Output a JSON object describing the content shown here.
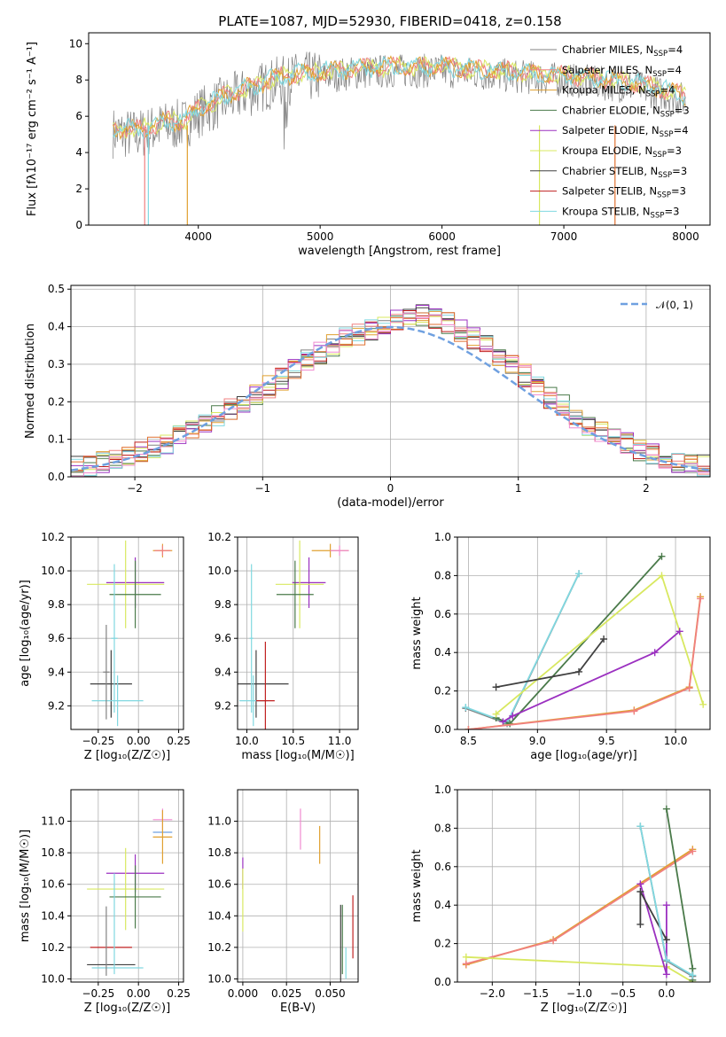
{
  "title": "PLATE=1087, MJD=52930, FIBERID=0418, z=0.158",
  "colors": {
    "Chabrier MILES": "#808080",
    "Salpeter MILES": "#f08080",
    "Kroupa MILES": "#e0a030",
    "Chabrier ELODIE": "#4a7a4a",
    "Salpeter ELODIE": "#9b30c0",
    "Kroupa ELODIE": "#d8e860",
    "Chabrier STELIB": "#404040",
    "Salpeter STELIB": "#c02020",
    "Kroupa STELIB": "#80d8e0",
    "blue": "#6fa0e0",
    "orange": "#e07030",
    "pink": "#f08ad0"
  },
  "chart_data": [
    {
      "type": "line",
      "title": "PLATE=1087, MJD=52930, FIBERID=0418, z=0.158",
      "xlabel": "wavelength [Angstrom, rest frame]",
      "ylabel": "Flux [fλ10⁻¹⁷ erg cm⁻² s⁻¹ A⁻¹]",
      "xlim": [
        3100,
        8200
      ],
      "ylim": [
        0,
        10.6
      ],
      "xticks": [
        "4000",
        "5000",
        "6000",
        "7000",
        "8000"
      ],
      "yticks": [
        "0",
        "2",
        "4",
        "6",
        "8",
        "10"
      ],
      "legend_position": "top-right",
      "legend": [
        {
          "model": "Chabrier MILES",
          "nssp": "4"
        },
        {
          "model": "Salpeter MILES",
          "nssp": "4"
        },
        {
          "model": "Kroupa MILES",
          "nssp": "4"
        },
        {
          "model": "Chabrier ELODIE",
          "nssp": "3"
        },
        {
          "model": "Salpeter ELODIE",
          "nssp": "4"
        },
        {
          "model": "Kroupa ELODIE",
          "nssp": "3"
        },
        {
          "model": "Chabrier STELIB",
          "nssp": "3"
        },
        {
          "model": "Salpeter STELIB",
          "nssp": "3"
        },
        {
          "model": "Kroupa STELIB",
          "nssp": "3"
        }
      ],
      "continuum": {
        "x": [
          3300,
          3500,
          3700,
          3900,
          4000,
          4200,
          4400,
          4600,
          4800,
          5000,
          5300,
          5600,
          6000,
          6400,
          6800,
          7200,
          7600,
          8000,
          8200
        ],
        "y": [
          5.1,
          5.0,
          5.4,
          5.6,
          6.2,
          6.8,
          7.3,
          7.8,
          8.1,
          8.2,
          8.4,
          8.5,
          8.5,
          8.3,
          8.1,
          7.9,
          7.6,
          6.9,
          6.4
        ]
      }
    },
    {
      "type": "bar",
      "xlabel": "(data-model)/error",
      "ylabel": "Normed distribution",
      "xlim": [
        -2.5,
        2.5
      ],
      "ylim": [
        0,
        0.51
      ],
      "xticks": [
        "−2",
        "−1",
        "0",
        "1",
        "2"
      ],
      "yticks": [
        "0.0",
        "0.1",
        "0.2",
        "0.3",
        "0.4",
        "0.5"
      ],
      "legend": "𝒩(0, 1)",
      "legend_position": "top-right",
      "bin_width": 0.1,
      "bin_start": -2.5,
      "values": [
        0.03,
        0.03,
        0.04,
        0.05,
        0.06,
        0.07,
        0.08,
        0.09,
        0.11,
        0.12,
        0.14,
        0.16,
        0.18,
        0.2,
        0.22,
        0.24,
        0.26,
        0.29,
        0.31,
        0.33,
        0.35,
        0.37,
        0.38,
        0.39,
        0.4,
        0.42,
        0.43,
        0.43,
        0.42,
        0.41,
        0.39,
        0.37,
        0.35,
        0.32,
        0.3,
        0.27,
        0.24,
        0.21,
        0.19,
        0.16,
        0.14,
        0.12,
        0.1,
        0.09,
        0.07,
        0.06,
        0.05,
        0.04,
        0.03,
        0.03
      ]
    },
    {
      "type": "scatter",
      "xlabel": "Z [log₁₀(Z/Z☉)]",
      "ylabel": "age  [log₁₀(age/yr)]",
      "xlim": [
        -0.42,
        0.28
      ],
      "ylim": [
        9.06,
        10.2
      ],
      "xticks": [
        "−0.25",
        "0.00",
        "0.25"
      ],
      "yticks": [
        "9.2",
        "9.4",
        "9.6",
        "9.8",
        "10.0",
        "10.2"
      ],
      "errorbars": [
        {
          "series": "Kroupa MILES",
          "x": 0.15,
          "y": 10.12,
          "xerr": 0.06,
          "yerr": 0.04
        },
        {
          "series": "Salpeter MILES",
          "x": 0.15,
          "y": 10.12,
          "xerr": 0.05,
          "yerr": 0.03
        },
        {
          "series": "Salpeter ELODIE",
          "x": -0.02,
          "y": 9.93,
          "xerr": 0.18,
          "yerr": 0.15
        },
        {
          "series": "Kroupa ELODIE",
          "x": -0.08,
          "y": 9.92,
          "xerr": 0.24,
          "yerr": 0.26
        },
        {
          "series": "Chabrier ELODIE",
          "x": -0.02,
          "y": 9.86,
          "xerr": 0.16,
          "yerr": 0.2
        },
        {
          "series": "Chabrier STELIB",
          "x": -0.17,
          "y": 9.33,
          "xerr": 0.13,
          "yerr": 0.2
        },
        {
          "series": "Kroupa STELIB",
          "x": -0.13,
          "y": 9.23,
          "xerr": 0.16,
          "yerr": 0.15
        },
        {
          "series": "Chabrier MILES",
          "x": -0.2,
          "y": 9.4,
          "xerr": 0.02,
          "yerr": 0.28
        },
        {
          "series": "Kroupa STELIB",
          "x": -0.15,
          "y": 9.6,
          "xerr": 0.02,
          "yerr": 0.44
        }
      ]
    },
    {
      "type": "scatter",
      "xlabel": "mass [log₁₀(M/M☉)]",
      "ylabel": "",
      "xlim": [
        9.9,
        11.2
      ],
      "ylim": [
        9.06,
        10.2
      ],
      "xticks": [
        "10.0",
        "10.5",
        "11.0"
      ],
      "yticks": [
        "9.2",
        "9.4",
        "9.6",
        "9.8",
        "10.0",
        "10.2"
      ],
      "errorbars": [
        {
          "series": "Kroupa MILES",
          "x": 10.9,
          "y": 10.12,
          "xerr": 0.2,
          "yerr": 0.04
        },
        {
          "series": "pink",
          "x": 11.0,
          "y": 10.12,
          "xerr": 0.1,
          "yerr": 0.03
        },
        {
          "series": "Salpeter ELODIE",
          "x": 10.67,
          "y": 9.93,
          "xerr": 0.18,
          "yerr": 0.15
        },
        {
          "series": "Kroupa ELODIE",
          "x": 10.57,
          "y": 9.92,
          "xerr": 0.26,
          "yerr": 0.26
        },
        {
          "series": "Chabrier ELODIE",
          "x": 10.52,
          "y": 9.86,
          "xerr": 0.2,
          "yerr": 0.2
        },
        {
          "series": "Chabrier STELIB",
          "x": 10.1,
          "y": 9.33,
          "xerr": 0.35,
          "yerr": 0.2
        },
        {
          "series": "Kroupa STELIB",
          "x": 10.07,
          "y": 9.23,
          "xerr": 0.15,
          "yerr": 0.15
        },
        {
          "series": "Salpeter STELIB",
          "x": 10.2,
          "y": 9.23,
          "xerr": 0.1,
          "yerr": 0.35
        },
        {
          "series": "Kroupa STELIB",
          "x": 10.05,
          "y": 9.6,
          "xerr": 0.02,
          "yerr": 0.44
        }
      ]
    },
    {
      "type": "line",
      "xlabel": "age  [log₁₀(age/yr)]",
      "ylabel": "mass weight",
      "xlim": [
        8.42,
        10.25
      ],
      "ylim": [
        0,
        1.0
      ],
      "xticks": [
        "8.5",
        "9.0",
        "9.5",
        "10.0"
      ],
      "yticks": [
        "0.0",
        "0.2",
        "0.4",
        "0.6",
        "0.8",
        "1.0"
      ],
      "series": [
        {
          "name": "Chabrier MILES",
          "x": [
            8.48,
            8.78,
            9.3
          ],
          "y": [
            0.11,
            0.03,
            0.81
          ]
        },
        {
          "name": "Kroupa STELIB",
          "x": [
            8.48,
            8.78,
            9.3
          ],
          "y": [
            0.115,
            0.035,
            0.81
          ]
        },
        {
          "name": "Chabrier ELODIE",
          "x": [
            8.7,
            8.8,
            9.9
          ],
          "y": [
            0.06,
            0.03,
            0.9
          ]
        },
        {
          "name": "Kroupa ELODIE",
          "x": [
            8.7,
            9.9,
            10.2
          ],
          "y": [
            0.08,
            0.8,
            0.13
          ]
        },
        {
          "name": "Salpeter ELODIE",
          "x": [
            8.75,
            8.82,
            9.85,
            10.03
          ],
          "y": [
            0.04,
            0.07,
            0.4,
            0.51
          ]
        },
        {
          "name": "Chabrier STELIB",
          "x": [
            8.7,
            9.3,
            9.48
          ],
          "y": [
            0.22,
            0.3,
            0.47
          ]
        },
        {
          "name": "Kroupa MILES",
          "x": [
            8.5,
            9.7,
            10.1,
            10.18
          ],
          "y": [
            0.0,
            0.1,
            0.22,
            0.69
          ]
        },
        {
          "name": "Salpeter MILES",
          "x": [
            8.5,
            9.7,
            10.1,
            10.18
          ],
          "y": [
            0.0,
            0.095,
            0.215,
            0.68
          ]
        }
      ]
    },
    {
      "type": "scatter",
      "xlabel": "Z [log₁₀(Z/Z☉)]",
      "ylabel": "mass [log₁₀(M/M☉)]",
      "xlim": [
        -0.42,
        0.28
      ],
      "ylim": [
        9.98,
        11.2
      ],
      "xticks": [
        "−0.25",
        "0.00",
        "0.25"
      ],
      "yticks": [
        "10.0",
        "10.2",
        "10.4",
        "10.6",
        "10.8",
        "11.0"
      ],
      "errorbars": [
        {
          "series": "pink",
          "x": 0.15,
          "y": 11.01,
          "xerr": 0.06,
          "yerr": 0.07
        },
        {
          "series": "blue",
          "x": 0.15,
          "y": 10.93,
          "xerr": 0.06,
          "yerr": 0.0
        },
        {
          "series": "Kroupa MILES",
          "x": 0.15,
          "y": 10.9,
          "xerr": 0.06,
          "yerr": 0.17
        },
        {
          "series": "Salpeter ELODIE",
          "x": -0.02,
          "y": 10.67,
          "xerr": 0.18,
          "yerr": 0.12
        },
        {
          "series": "Kroupa ELODIE",
          "x": -0.08,
          "y": 10.57,
          "xerr": 0.24,
          "yerr": 0.26
        },
        {
          "series": "Chabrier ELODIE",
          "x": -0.02,
          "y": 10.52,
          "xerr": 0.16,
          "yerr": 0.2
        },
        {
          "series": "Salpeter STELIB",
          "x": -0.17,
          "y": 10.2,
          "xerr": 0.13,
          "yerr": 0.0
        },
        {
          "series": "Chabrier STELIB",
          "x": -0.17,
          "y": 10.09,
          "xerr": 0.15,
          "yerr": 0.0
        },
        {
          "series": "Kroupa STELIB",
          "x": -0.13,
          "y": 10.07,
          "xerr": 0.16,
          "yerr": 0.0
        },
        {
          "series": "Chabrier MILES",
          "x": -0.2,
          "y": 10.24,
          "xerr": 0.0,
          "yerr": 0.22
        },
        {
          "series": "Kroupa STELIB",
          "x": -0.15,
          "y": 10.35,
          "xerr": 0.0,
          "yerr": 0.32
        }
      ]
    },
    {
      "type": "scatter",
      "xlabel": "E(B-V)",
      "ylabel": "",
      "xlim": [
        -0.003,
        0.066
      ],
      "ylim": [
        9.98,
        11.2
      ],
      "xticks": [
        "0.000",
        "0.025",
        "0.050"
      ],
      "yticks": [
        "10.0",
        "10.2",
        "10.4",
        "10.6",
        "10.8",
        "11.0"
      ],
      "errorbars": [
        {
          "series": "pink",
          "x": 0.033,
          "y": 10.95,
          "xerr": 0,
          "yerr": 0.13
        },
        {
          "series": "Kroupa MILES",
          "x": 0.044,
          "y": 10.85,
          "xerr": 0,
          "yerr": 0.12
        },
        {
          "series": "Salpeter ELODIE",
          "x": 0.0,
          "y": 10.67,
          "xerr": 0,
          "yerr": 0.1
        },
        {
          "series": "Kroupa ELODIE",
          "x": 0.0,
          "y": 10.5,
          "xerr": 0,
          "yerr": 0.2
        },
        {
          "series": "Chabrier ELODIE",
          "x": 0.057,
          "y": 10.25,
          "xerr": 0,
          "yerr": 0.22
        },
        {
          "series": "Chabrier STELIB",
          "x": 0.056,
          "y": 10.22,
          "xerr": 0,
          "yerr": 0.25
        },
        {
          "series": "Kroupa STELIB",
          "x": 0.059,
          "y": 10.1,
          "xerr": 0,
          "yerr": 0.1
        },
        {
          "series": "Salpeter STELIB",
          "x": 0.063,
          "y": 10.33,
          "xerr": 0,
          "yerr": 0.2
        }
      ]
    },
    {
      "type": "line",
      "xlabel": "Z [log₁₀(Z/Z☉)]",
      "ylabel": "mass weight",
      "xlim": [
        -2.4,
        0.5
      ],
      "ylim": [
        0,
        1.0
      ],
      "xticks": [
        "−2.0",
        "−1.5",
        "−1.0",
        "−0.5",
        "0.0"
      ],
      "yticks": [
        "0.0",
        "0.2",
        "0.4",
        "0.6",
        "0.8",
        "1.0"
      ],
      "series": [
        {
          "name": "Kroupa MILES",
          "x": [
            -2.3,
            -1.3,
            0.3
          ],
          "y": [
            0.09,
            0.22,
            0.69
          ]
        },
        {
          "name": "Salpeter MILES",
          "x": [
            -2.3,
            -1.3,
            0.3
          ],
          "y": [
            0.095,
            0.215,
            0.68
          ]
        },
        {
          "name": "Kroupa ELODIE",
          "x": [
            -2.3,
            0.0,
            0.3
          ],
          "y": [
            0.13,
            0.08,
            0.0
          ]
        },
        {
          "name": "Chabrier ELODIE",
          "x": [
            0.0,
            0.3,
            0.3
          ],
          "y": [
            0.9,
            0.07,
            0.01
          ]
        },
        {
          "name": "Salpeter ELODIE",
          "x": [
            -0.3,
            0.0,
            0.0
          ],
          "y": [
            0.51,
            0.04,
            0.4
          ]
        },
        {
          "name": "Chabrier STELIB",
          "x": [
            -0.3,
            -0.3,
            0.0
          ],
          "y": [
            0.3,
            0.47,
            0.22
          ]
        },
        {
          "name": "Chabrier MILES",
          "x": [
            -0.3,
            0.0,
            0.3
          ],
          "y": [
            0.81,
            0.11,
            0.03
          ]
        },
        {
          "name": "Kroupa STELIB",
          "x": [
            -0.3,
            0.0,
            0.3
          ],
          "y": [
            0.81,
            0.115,
            0.035
          ]
        }
      ]
    }
  ]
}
